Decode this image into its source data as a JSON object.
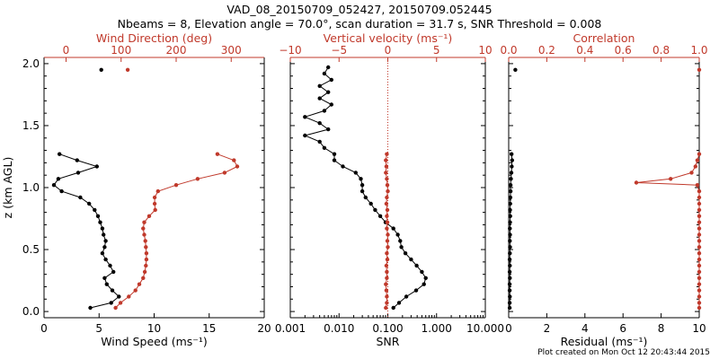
{
  "title_line1": "VAD_08_20150709_052427, 20150709.052445",
  "title_line2": "Nbeams = 8, Elevation angle = 70.0°, scan duration = 31.7 s, SNR Threshold = 0.008",
  "credit": "Plot created on Mon Oct 12 20:43:44 2015",
  "colors": {
    "black": "#000000",
    "red": "#c0392b",
    "accent": "#e02020"
  },
  "chart_data": [
    {
      "type": "line",
      "panel": "wind",
      "ylabel": "z (km AGL)",
      "ylim": [
        -0.05,
        2.05
      ],
      "yticks": [
        "0.0",
        "0.5",
        "1.0",
        "1.5",
        "2.0"
      ],
      "bottom_axis": {
        "label": "Wind Speed (ms⁻¹)",
        "range": [
          0,
          20
        ],
        "ticks": [
          "0",
          "5",
          "10",
          "15",
          "20"
        ]
      },
      "top_axis": {
        "label": "Wind Direction (deg)",
        "range": [
          -40,
          360
        ],
        "ticks": [
          "0",
          "100",
          "200",
          "300"
        ]
      },
      "series": [
        {
          "name": "Wind Speed",
          "axis": "bottom",
          "color": "#000000",
          "z": [
            0.03,
            0.07,
            0.12,
            0.17,
            0.22,
            0.27,
            0.32,
            0.37,
            0.42,
            0.47,
            0.52,
            0.57,
            0.62,
            0.67,
            0.72,
            0.77,
            0.82,
            0.87,
            0.92,
            0.97,
            1.02,
            1.07,
            1.12,
            1.17,
            1.22,
            1.27,
            1.95
          ],
          "values": [
            4.2,
            6.1,
            6.8,
            6.2,
            5.7,
            5.5,
            6.3,
            6.0,
            5.6,
            5.3,
            5.5,
            5.6,
            5.4,
            5.3,
            5.1,
            4.9,
            4.6,
            4.1,
            3.3,
            1.6,
            0.9,
            1.3,
            3.1,
            4.8,
            3.0,
            1.4,
            5.2
          ]
        },
        {
          "name": "Wind Direction",
          "axis": "top",
          "color": "#c0392b",
          "z": [
            0.03,
            0.07,
            0.12,
            0.17,
            0.22,
            0.27,
            0.32,
            0.37,
            0.42,
            0.47,
            0.52,
            0.57,
            0.62,
            0.67,
            0.72,
            0.77,
            0.82,
            0.87,
            0.92,
            0.97,
            1.02,
            1.07,
            1.12,
            1.17,
            1.22,
            1.27,
            1.95
          ],
          "values": [
            90,
            99,
            114,
            126,
            133,
            140,
            143,
            145,
            146,
            146,
            145,
            144,
            142,
            140,
            142,
            151,
            162,
            161,
            161,
            167,
            200,
            239,
            288,
            311,
            305,
            275,
            112
          ]
        }
      ]
    },
    {
      "type": "line",
      "panel": "snr",
      "ylim": [
        -0.05,
        2.05
      ],
      "bottom_axis": {
        "label": "SNR",
        "scale": "log",
        "range": [
          0.001,
          10
        ],
        "ticks": [
          "0.001",
          "0.010",
          "0.100",
          "1.000",
          "10.000"
        ]
      },
      "top_axis": {
        "label": "Vertical velocity (ms⁻¹)",
        "range": [
          -10,
          10
        ],
        "ticks": [
          "−10",
          "−5",
          "0",
          "5",
          "10"
        ]
      },
      "series": [
        {
          "name": "SNR",
          "axis": "bottom",
          "color": "#000000",
          "z": [
            0.03,
            0.07,
            0.12,
            0.17,
            0.22,
            0.27,
            0.32,
            0.37,
            0.42,
            0.47,
            0.52,
            0.57,
            0.62,
            0.67,
            0.72,
            0.77,
            0.82,
            0.87,
            0.92,
            0.97,
            1.02,
            1.07,
            1.12,
            1.17,
            1.22,
            1.27,
            1.32,
            1.37,
            1.42,
            1.47,
            1.52,
            1.57,
            1.62,
            1.67,
            1.72,
            1.77,
            1.82,
            1.87,
            1.92,
            1.97
          ],
          "values": [
            0.13,
            0.17,
            0.24,
            0.38,
            0.55,
            0.6,
            0.5,
            0.39,
            0.3,
            0.23,
            0.19,
            0.18,
            0.16,
            0.13,
            0.09,
            0.07,
            0.055,
            0.045,
            0.035,
            0.03,
            0.03,
            0.028,
            0.022,
            0.012,
            0.008,
            0.008,
            0.005,
            0.004,
            0.002,
            0.006,
            0.004,
            0.002,
            0.005,
            0.007,
            0.004,
            0.006,
            0.004,
            0.007,
            0.005,
            0.006
          ]
        },
        {
          "name": "Vertical velocity",
          "axis": "top",
          "color": "#c0392b",
          "z": [
            0.03,
            0.07,
            0.12,
            0.17,
            0.22,
            0.27,
            0.32,
            0.37,
            0.42,
            0.47,
            0.52,
            0.57,
            0.62,
            0.67,
            0.72,
            0.77,
            0.82,
            0.87,
            0.92,
            0.97,
            1.02,
            1.07,
            1.12,
            1.17,
            1.22,
            1.27
          ],
          "values": [
            -0.2,
            -0.1,
            -0.1,
            -0.15,
            -0.2,
            -0.1,
            -0.1,
            -0.15,
            -0.05,
            -0.1,
            0,
            -0.05,
            0,
            -0.1,
            -0.05,
            -0.1,
            -0.05,
            -0.15,
            -0.1,
            0,
            -0.05,
            -0.1,
            -0.2,
            -0.15,
            -0.2,
            -0.1
          ]
        }
      ]
    },
    {
      "type": "line",
      "panel": "residual",
      "ylim": [
        -0.05,
        2.05
      ],
      "bottom_axis": {
        "label": "Residual (ms⁻¹)",
        "range": [
          0,
          10
        ],
        "ticks": [
          "0",
          "2",
          "4",
          "6",
          "8",
          "10"
        ]
      },
      "top_axis": {
        "label": "Correlation",
        "range": [
          0,
          1.0
        ],
        "ticks": [
          "0.0",
          "0.2",
          "0.4",
          "0.6",
          "0.8",
          "1.0"
        ]
      },
      "series": [
        {
          "name": "Residual",
          "axis": "bottom",
          "color": "#000000",
          "z": [
            0.03,
            0.07,
            0.12,
            0.17,
            0.22,
            0.27,
            0.32,
            0.37,
            0.42,
            0.47,
            0.52,
            0.57,
            0.62,
            0.67,
            0.72,
            0.77,
            0.82,
            0.87,
            0.92,
            0.97,
            1.02,
            1.07,
            1.12,
            1.17,
            1.22,
            1.27,
            1.95
          ],
          "values": [
            0.05,
            0.05,
            0.06,
            0.05,
            0.05,
            0.06,
            0.05,
            0.06,
            0.05,
            0.06,
            0.07,
            0.06,
            0.07,
            0.06,
            0.07,
            0.08,
            0.07,
            0.08,
            0.09,
            0.1,
            0.1,
            0.12,
            0.14,
            0.16,
            0.18,
            0.15,
            0.35
          ]
        },
        {
          "name": "Correlation",
          "axis": "top",
          "color": "#c0392b",
          "z": [
            0.03,
            0.07,
            0.12,
            0.17,
            0.22,
            0.27,
            0.32,
            0.37,
            0.42,
            0.47,
            0.52,
            0.57,
            0.62,
            0.67,
            0.72,
            0.77,
            0.82,
            0.87,
            0.92,
            0.97,
            1.02,
            1.04,
            1.07,
            1.12,
            1.17,
            1.22,
            1.27,
            1.95
          ],
          "values": [
            1.0,
            1.0,
            1.0,
            1.0,
            1.0,
            1.0,
            1.0,
            1.0,
            1.0,
            1.0,
            1.0,
            1.0,
            1.0,
            1.0,
            1.0,
            1.0,
            1.0,
            1.0,
            1.0,
            1.0,
            0.99,
            0.67,
            0.85,
            0.96,
            0.98,
            0.99,
            1.0,
            1.0
          ]
        }
      ]
    }
  ]
}
